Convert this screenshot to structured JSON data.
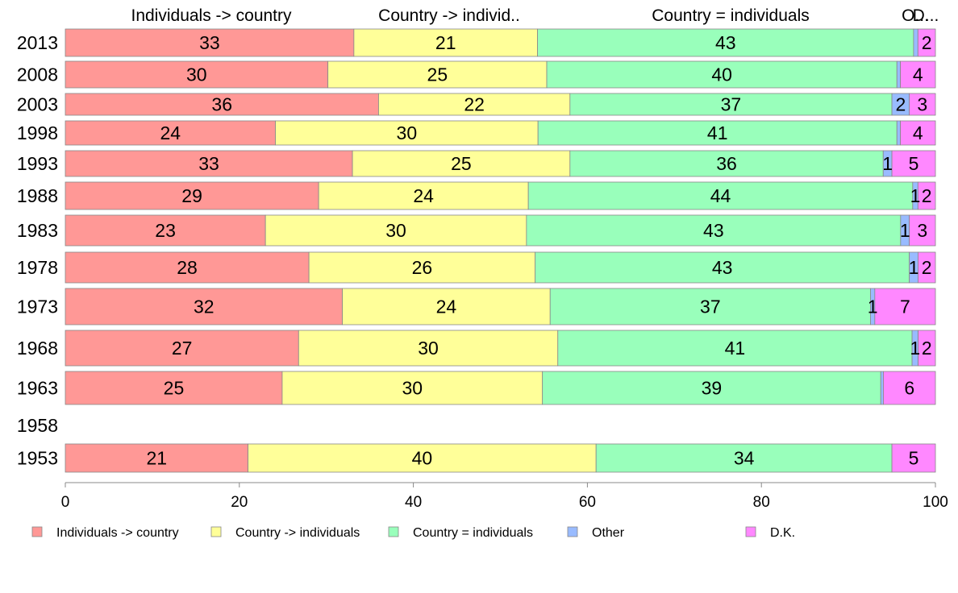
{
  "chart_data": {
    "type": "bar",
    "orientation": "horizontal",
    "stacked": true,
    "categories": [
      "2013",
      "2008",
      "2003",
      "1998",
      "1993",
      "1988",
      "1983",
      "1978",
      "1973",
      "1968",
      "1963",
      "1958",
      "1953"
    ],
    "series": [
      {
        "name": "Individuals -> country",
        "color": "#ff9896",
        "values": [
          33,
          30,
          36,
          24,
          33,
          29,
          23,
          28,
          32,
          27,
          25,
          null,
          21
        ]
      },
      {
        "name": "Country -> individuals",
        "color": "#ffff99",
        "values": [
          21,
          25,
          22,
          30,
          25,
          24,
          30,
          26,
          24,
          30,
          30,
          null,
          40
        ]
      },
      {
        "name": "Country = individuals",
        "color": "#99ffbb",
        "values": [
          43,
          40,
          37,
          41,
          36,
          44,
          43,
          43,
          37,
          41,
          39,
          null,
          34
        ]
      },
      {
        "name": "Other",
        "color": "#99bbff",
        "values": [
          0.5,
          0.4,
          2,
          0.4,
          1,
          0.6,
          1,
          1,
          0.5,
          0.7,
          0.3,
          null,
          0
        ]
      },
      {
        "name": "D.K.",
        "color": "#ff88ff",
        "values": [
          2,
          4,
          3,
          4,
          5,
          2,
          3,
          2,
          7,
          2,
          6,
          null,
          5
        ]
      }
    ],
    "bar_labels": [
      [
        "33",
        "21",
        "43",
        "",
        "2"
      ],
      [
        "30",
        "25",
        "40",
        "",
        "4"
      ],
      [
        "36",
        "22",
        "37",
        "2",
        "3"
      ],
      [
        "24",
        "30",
        "41",
        "",
        "4"
      ],
      [
        "33",
        "25",
        "36",
        "1",
        "5"
      ],
      [
        "29",
        "24",
        "44",
        "1",
        "2"
      ],
      [
        "23",
        "30",
        "43",
        "1",
        "3"
      ],
      [
        "28",
        "26",
        "43",
        "1",
        "2"
      ],
      [
        "32",
        "24",
        "37",
        "1",
        "7"
      ],
      [
        "27",
        "30",
        "41",
        "1",
        "2"
      ],
      [
        "25",
        "30",
        "39",
        "",
        "6"
      ],
      [
        "",
        "",
        "",
        "",
        ""
      ],
      [
        "21",
        "40",
        "34",
        "",
        "5"
      ]
    ],
    "top_labels": [
      "Individuals -> country",
      "Country -> individ..",
      "Country = individuals",
      "O...",
      "D..."
    ],
    "xlim": [
      0,
      100
    ],
    "xticks": [
      "0",
      "20",
      "40",
      "60",
      "80",
      "100"
    ],
    "grid": false,
    "legend_position": "bottom"
  }
}
